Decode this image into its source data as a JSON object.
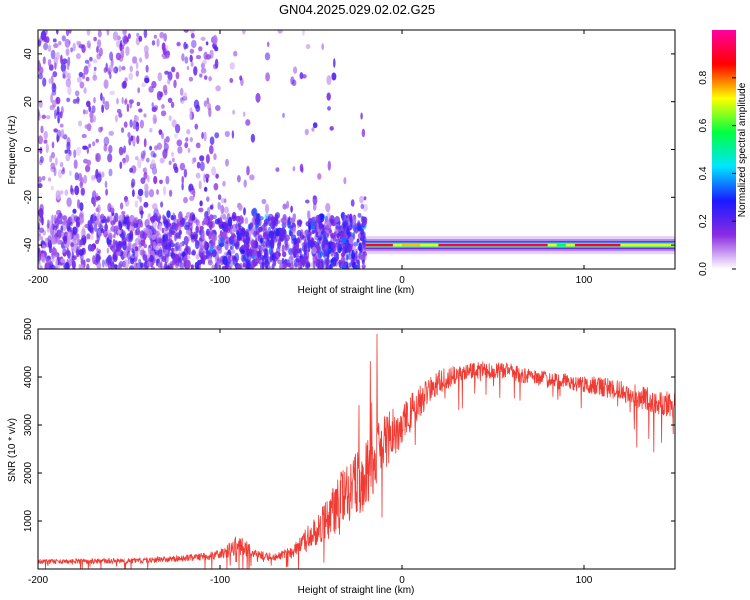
{
  "title": "GN04.2025.029.02.02.G25",
  "chart_data": [
    {
      "type": "heatmap",
      "xlabel": "Height of straight line (km)",
      "ylabel": "Frequency (Hz)",
      "xlim": [
        -200,
        150
      ],
      "ylim": [
        -50,
        50
      ],
      "xticks": [
        -200,
        -100,
        0,
        100
      ],
      "yticks": [
        -40,
        -20,
        0,
        20,
        40
      ],
      "colorbar": {
        "label": "Normalized spectral amplitude",
        "range": [
          0,
          1
        ],
        "ticks": [
          0.0,
          0.2,
          0.4,
          0.6,
          0.8
        ],
        "colors": [
          "#ffffff",
          "#8a2be2",
          "#1a1aff",
          "#00e5ff",
          "#00ff40",
          "#ffff00",
          "#ff0000",
          "#ff00a0"
        ]
      },
      "description_points": {
        "noise_region_x": [
          -200,
          -20
        ],
        "tone_frequency_hz": -40,
        "tone_x_range": [
          -20,
          150
        ]
      },
      "grid": false
    },
    {
      "type": "line",
      "xlabel": "Height of straight line (km)",
      "ylabel": "SNR (10 * v/v)",
      "xlim": [
        -200,
        150
      ],
      "ylim": [
        0,
        5000
      ],
      "xticks": [
        -200,
        -100,
        0,
        100
      ],
      "yticks": [
        1000,
        2000,
        3000,
        4000,
        5000
      ],
      "series_color": "#f03a32",
      "envelope": {
        "x": [
          -200,
          -150,
          -120,
          -100,
          -95,
          -90,
          -85,
          -80,
          -70,
          -60,
          -50,
          -40,
          -30,
          -20,
          -15,
          -10,
          -5,
          0,
          10,
          20,
          30,
          40,
          50,
          60,
          70,
          80,
          90,
          100,
          110,
          120,
          130,
          140,
          150
        ],
        "mean": [
          150,
          170,
          220,
          300,
          420,
          500,
          420,
          300,
          250,
          350,
          700,
          1100,
          1600,
          2000,
          2300,
          2600,
          2800,
          3000,
          3500,
          3900,
          4050,
          4150,
          4150,
          4100,
          4000,
          3950,
          3900,
          3850,
          3800,
          3700,
          3600,
          3500,
          3400
        ],
        "spread": [
          100,
          110,
          130,
          200,
          350,
          450,
          300,
          200,
          150,
          250,
          600,
          900,
          1400,
          1500,
          1500,
          1300,
          1100,
          900,
          700,
          500,
          400,
          350,
          350,
          350,
          350,
          350,
          350,
          350,
          400,
          450,
          500,
          550,
          550
        ]
      },
      "grid": false
    }
  ]
}
